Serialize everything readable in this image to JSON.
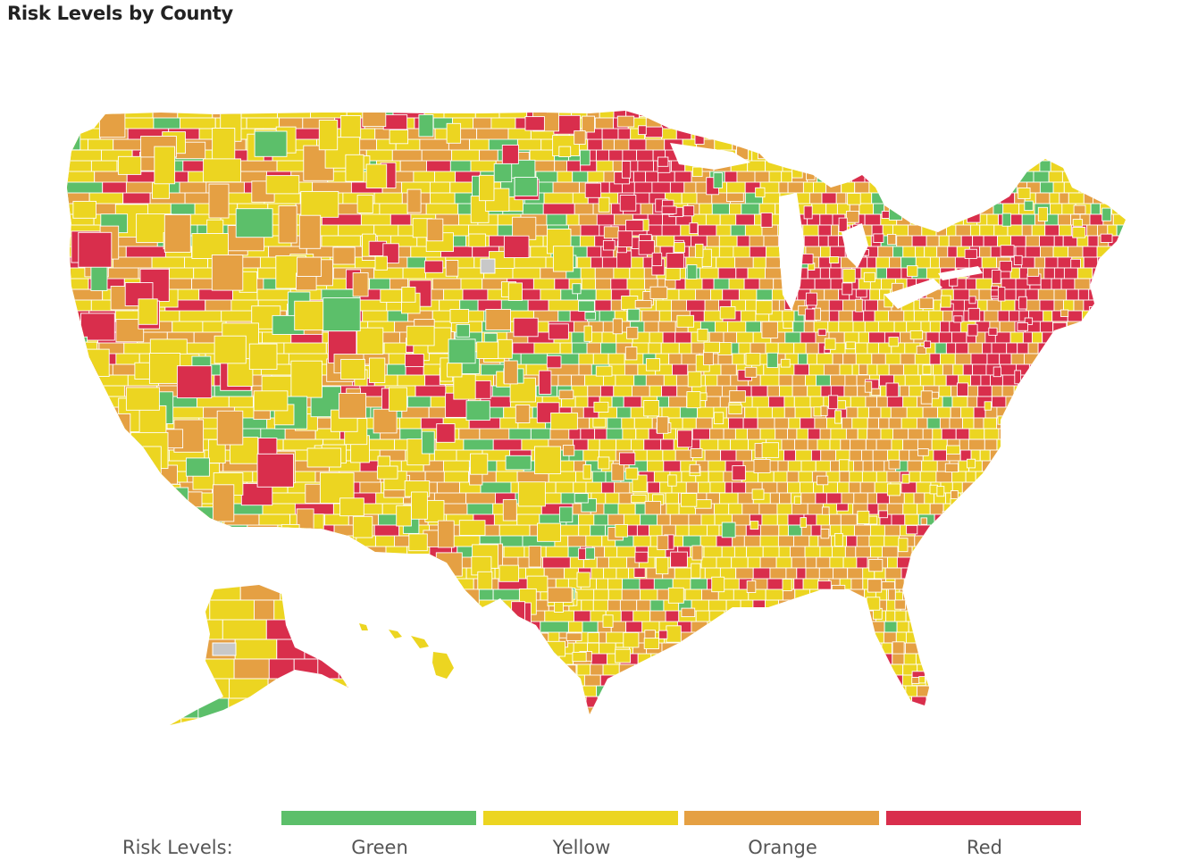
{
  "title": "Risk Levels by County",
  "legend": {
    "title": "Risk Levels:",
    "items": [
      {
        "label": "Green",
        "color": "#5cbf6a"
      },
      {
        "label": "Yellow",
        "color": "#ecd521"
      },
      {
        "label": "Orange",
        "color": "#e5a043"
      },
      {
        "label": "Red",
        "color": "#d92e4c"
      }
    ]
  },
  "no_data_color": "#c8c8c8",
  "border_color": "#ffffff"
}
